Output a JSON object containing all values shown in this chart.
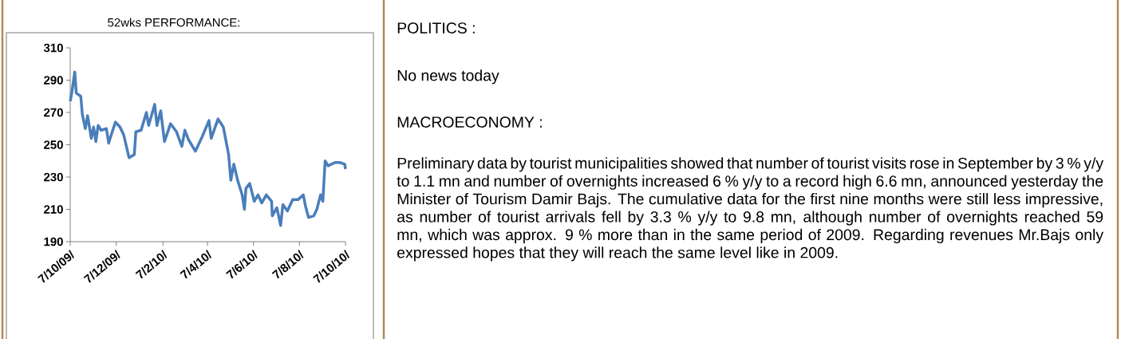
{
  "chart_data": {
    "type": "line",
    "title": "52wks PERFORMANCE:",
    "annotations": [
      "POLITICS :",
      "No news today",
      "MACROECONOMY :",
      "Preliminary data by tourist municipalities showed that number of tourist visits rose in September by 3 % y/y to 1.1 mn and number of overnights increased 6 % y/y to a record high 6.6 mn, announced yesterday the Minister of Tourism Damir Bajs. The cumulative data for the first nine months were still less impressive, as number of tourist arrivals fell by 3.3 % y/y to 9.8 mn, although number of overnights reached 59 mn, which was approx. 9 % more than in the same period of 2009. Regarding revenues Mr.Bajs only expressed hopes that they will reach the same level like in 2009."
    ],
    "x": [
      "2009-10-07",
      "2009-10-09",
      "2009-10-13",
      "2009-10-15",
      "2009-10-21",
      "2009-10-23",
      "2009-10-27",
      "2009-10-30",
      "2009-11-04",
      "2009-11-07",
      "2009-11-10",
      "2009-11-13",
      "2009-11-17",
      "2009-11-24",
      "2009-11-27",
      "2009-12-01",
      "2009-12-06",
      "2009-12-12",
      "2009-12-17",
      "2009-12-24",
      "2009-12-31",
      "2010-01-02",
      "2010-01-09",
      "2010-01-16",
      "2010-01-19",
      "2010-01-27",
      "2010-01-30",
      "2010-02-04",
      "2010-02-09",
      "2010-02-17",
      "2010-02-25",
      "2010-03-04",
      "2010-03-08",
      "2010-03-13",
      "2010-03-22",
      "2010-03-31",
      "2010-04-09",
      "2010-04-12",
      "2010-04-21",
      "2010-04-28",
      "2010-05-05",
      "2010-05-08",
      "2010-05-12",
      "2010-05-17",
      "2010-05-23",
      "2010-05-26",
      "2010-05-28",
      "2010-06-02",
      "2010-06-08",
      "2010-06-13",
      "2010-06-18",
      "2010-06-24",
      "2010-07-01",
      "2010-07-02",
      "2010-07-08",
      "2010-07-13",
      "2010-07-16",
      "2010-07-22",
      "2010-07-29",
      "2010-08-05",
      "2010-08-12",
      "2010-08-15",
      "2010-08-19",
      "2010-08-26",
      "2010-08-30",
      "2010-09-04",
      "2010-09-07",
      "2010-09-10",
      "2010-09-14",
      "2010-09-23",
      "2010-09-30",
      "2010-10-06",
      "2010-10-07"
    ],
    "values": [
      277,
      282,
      295,
      282,
      280,
      269,
      260,
      268,
      254,
      261,
      252,
      262,
      259,
      260,
      251,
      257,
      264,
      261,
      256,
      242,
      244,
      258,
      259,
      270,
      262,
      275,
      262,
      271,
      252,
      263,
      258,
      249,
      259,
      253,
      246,
      255,
      265,
      254,
      266,
      261,
      244,
      228,
      238,
      228,
      219,
      210,
      223,
      226,
      215,
      219,
      214,
      219,
      215,
      206,
      211,
      200,
      213,
      209,
      216,
      216,
      219,
      212,
      205,
      206,
      210,
      219,
      215,
      240,
      237,
      239,
      239,
      238,
      235
    ],
    "color": "#4a7ebb",
    "xlim": [
      "2009-10-07",
      "2010-10-07"
    ],
    "xticks": [
      {
        "value": "2009-10-07",
        "label": "7/10/09/"
      },
      {
        "value": "2009-12-07",
        "label": "7/12/09/"
      },
      {
        "value": "2010-02-07",
        "label": "7/2/10/"
      },
      {
        "value": "2010-04-07",
        "label": "7/4/10/"
      },
      {
        "value": "2010-06-07",
        "label": "7/6/10/"
      },
      {
        "value": "2010-08-07",
        "label": "7/8/10/"
      },
      {
        "value": "2010-10-07",
        "label": "7/10/10/"
      }
    ],
    "ylim": [
      190,
      310
    ],
    "yticks": [
      190,
      210,
      230,
      250,
      270,
      290,
      310
    ]
  }
}
